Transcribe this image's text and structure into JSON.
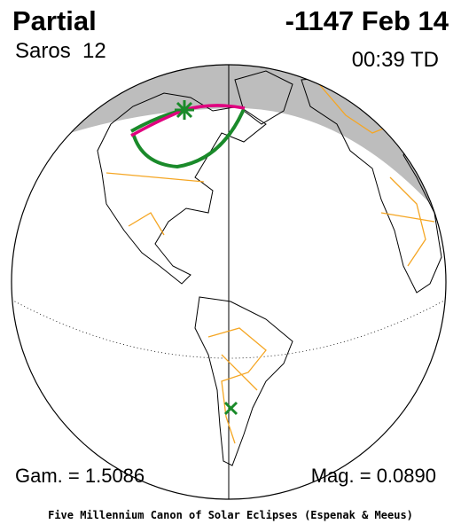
{
  "header": {
    "type": "Partial",
    "date": "-1147 Feb 14",
    "saros": "Saros  12",
    "time": "00:39 TD"
  },
  "footer": {
    "gamma": "Gam. = 1.5086",
    "magnitude": "Mag. = 0.0890",
    "credit": "Five Millennium Canon of Solar Eclipses (Espenak & Meeus)"
  }
}
